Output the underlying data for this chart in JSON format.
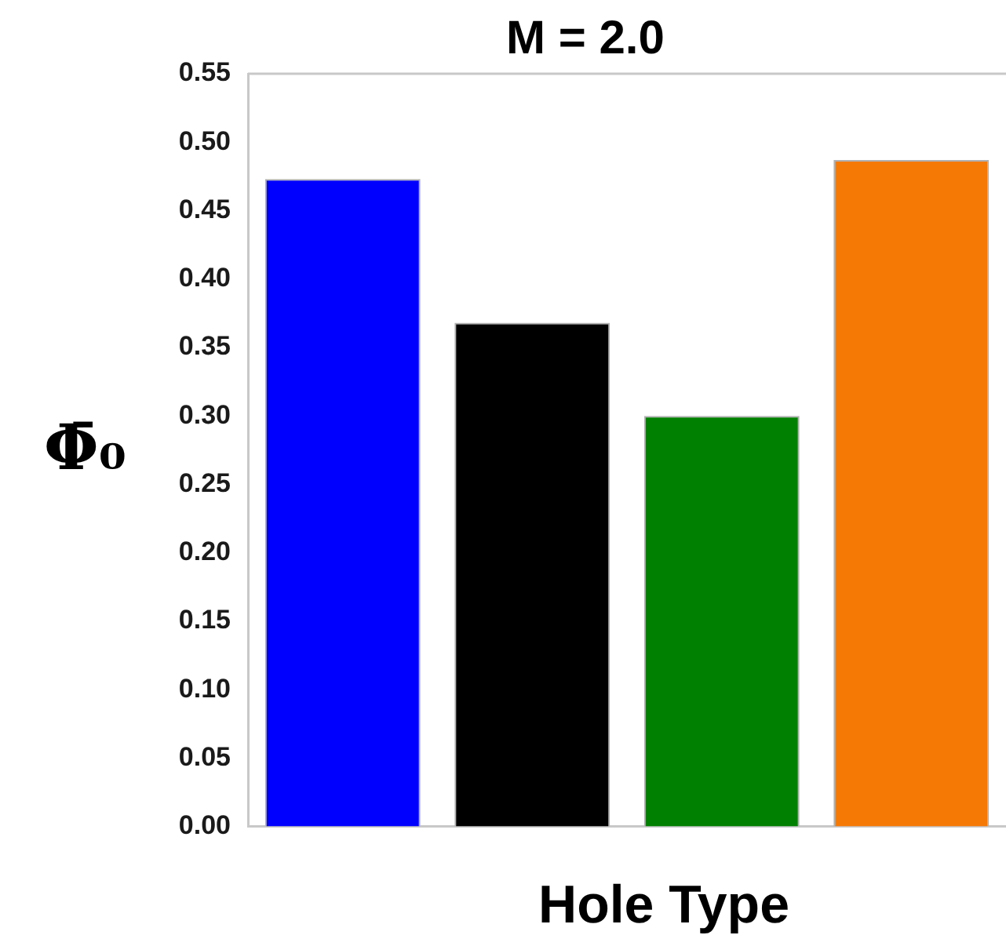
{
  "chart_data": {
    "type": "bar",
    "title": "M = 2.0",
    "xlabel": "Hole Type",
    "ylabel": "Φ̄₀",
    "categories": [
      null,
      null,
      null,
      null
    ],
    "values": [
      0.473,
      0.368,
      0.3,
      0.487
    ],
    "colors": [
      "#0000ff",
      "#000000",
      "#008000",
      "#f57905"
    ],
    "ylim": [
      0,
      0.55
    ],
    "yticks": [
      {
        "value": 0,
        "label": "0.00"
      },
      {
        "value": 0.05,
        "label": "0.05"
      },
      {
        "value": 0.1,
        "label": "0.10"
      },
      {
        "value": 0.15,
        "label": "0.15"
      },
      {
        "value": 0.2,
        "label": "0.20"
      },
      {
        "value": 0.25,
        "label": "0.25"
      },
      {
        "value": 0.3,
        "label": "0.30"
      },
      {
        "value": 0.35,
        "label": "0.35"
      },
      {
        "value": 0.4,
        "label": "0.40"
      },
      {
        "value": 0.45,
        "label": "0.45"
      },
      {
        "value": 0.5,
        "label": "0.50"
      },
      {
        "value": 0.55,
        "label": "0.55"
      }
    ],
    "grid": false,
    "legend": false
  }
}
